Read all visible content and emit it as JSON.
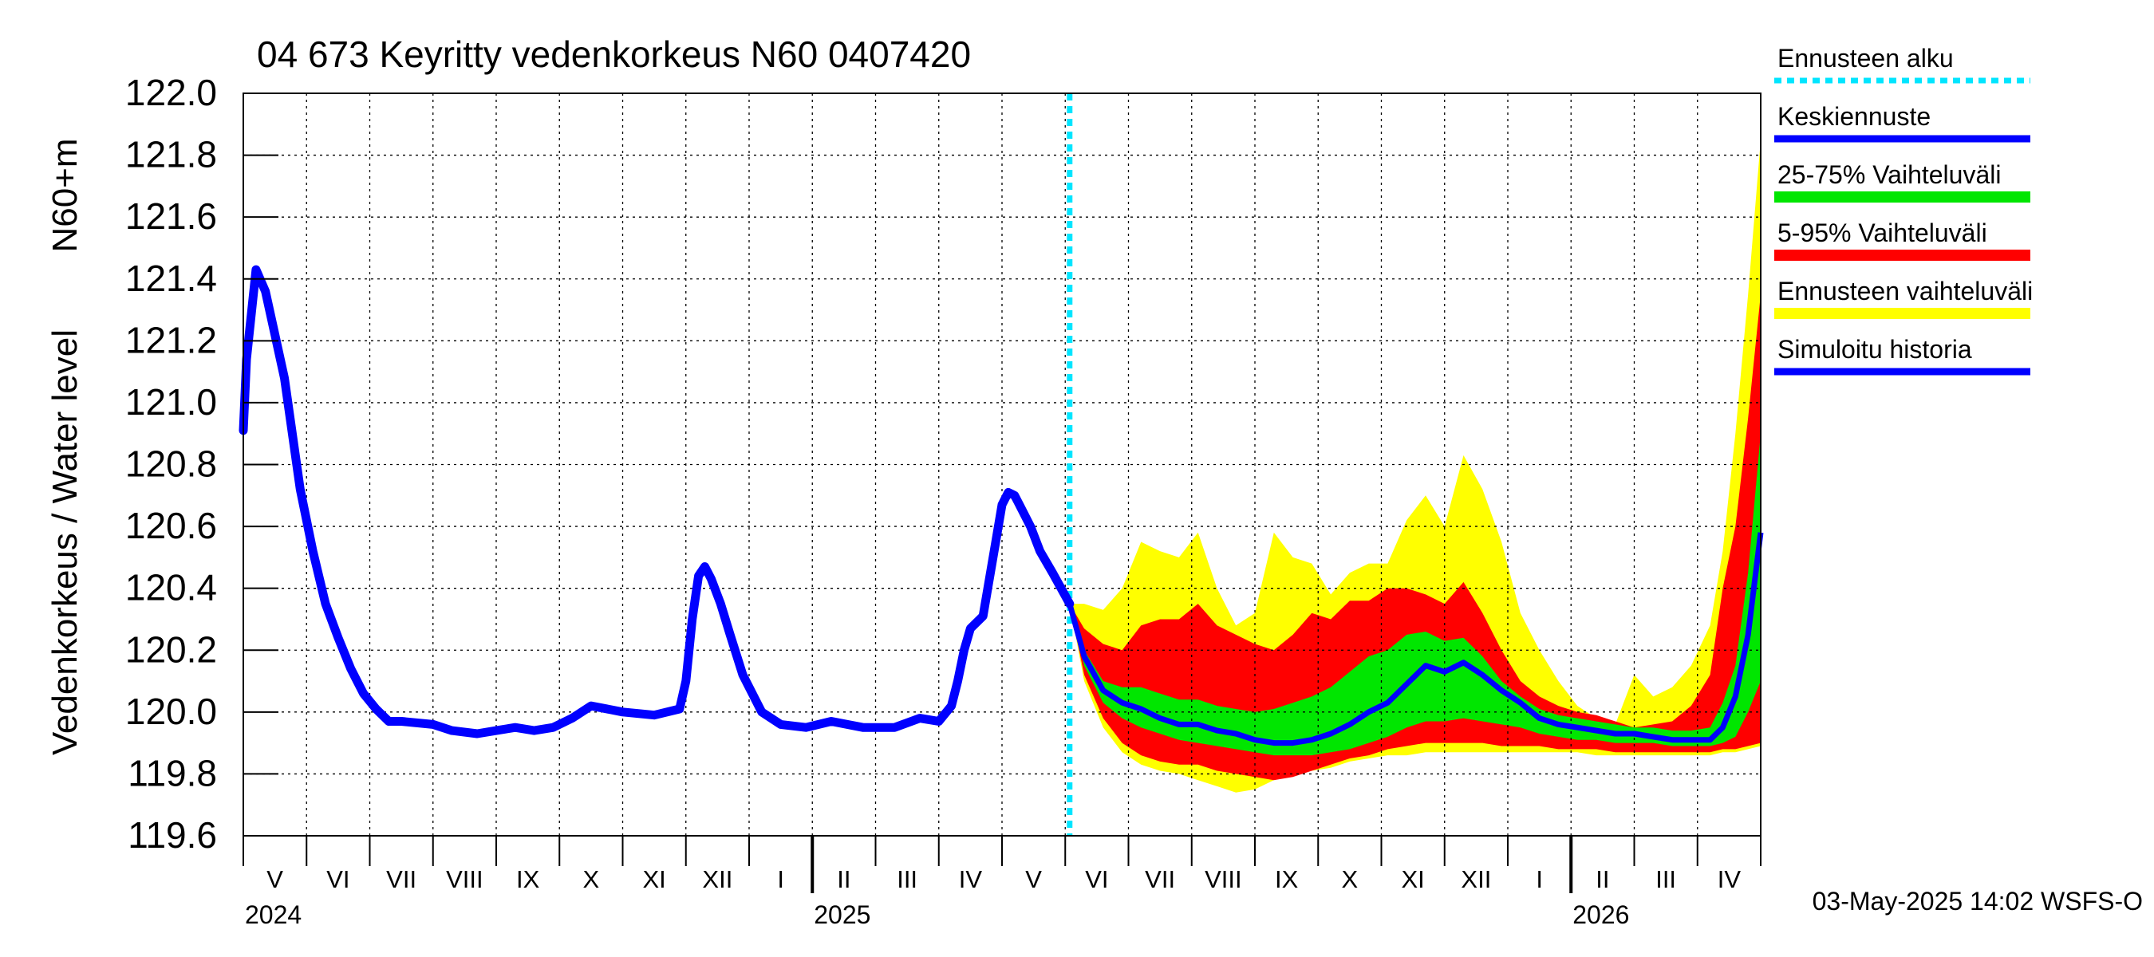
{
  "colors": {
    "background": "#ffffff",
    "grid": "#000000",
    "forecast_start": "#00e5ff",
    "mean_forecast": "#0000ff",
    "band_25_75": "#00e600",
    "band_5_95": "#ff0000",
    "band_forecast_range": "#ffff00",
    "simulated_history": "#0000ff"
  },
  "chart_data": {
    "type": "line",
    "title": "04 673 Keyritty vedenkorkeus N60 0407420",
    "ylabel_left": "Vedenkorkeus / Water level",
    "ylabel_right": "N60+m",
    "ylim": [
      119.6,
      122.0
    ],
    "yticks": [
      "122.0",
      "121.8",
      "121.6",
      "121.4",
      "121.2",
      "121.0",
      "120.8",
      "120.6",
      "120.4",
      "120.2",
      "120.0",
      "119.8",
      "119.6"
    ],
    "x_range_months": [
      0,
      24
    ],
    "x_unit": "months since 2024-04-01",
    "month_labels": [
      "V",
      "VI",
      "VII",
      "VIII",
      "IX",
      "X",
      "XI",
      "XII",
      "I",
      "II",
      "III",
      "IV",
      "V",
      "VI",
      "VII",
      "VIII",
      "IX",
      "X",
      "XI",
      "XII",
      "I",
      "II",
      "III",
      "IV"
    ],
    "year_labels": [
      {
        "label": "2024",
        "month_index": 0
      },
      {
        "label": "2025",
        "month_index": 9
      },
      {
        "label": "2026",
        "month_index": 21
      }
    ],
    "forecast_start": 13.07,
    "legend": [
      {
        "label": "Ennusteen alku",
        "key": "forecast_start"
      },
      {
        "label": "Keskiennuste",
        "key": "mean_forecast"
      },
      {
        "label": "25-75% Vaihteluväli",
        "key": "band_25_75"
      },
      {
        "label": "5-95% Vaihteluväli",
        "key": "band_5_95"
      },
      {
        "label": "Ennusteen vaihteluväli",
        "key": "band_forecast_range"
      },
      {
        "label": "Simuloitu historia",
        "key": "simulated_history"
      }
    ],
    "footer": "03-May-2025 14:02 WSFS-O",
    "history": {
      "name": "Simuloitu historia",
      "x": [
        0.0,
        0.05,
        0.2,
        0.35,
        0.5,
        0.65,
        0.9,
        1.1,
        1.3,
        1.5,
        1.7,
        1.9,
        2.1,
        2.3,
        2.5,
        3.0,
        3.3,
        3.7,
        4.0,
        4.3,
        4.6,
        4.9,
        5.2,
        5.5,
        6.0,
        6.5,
        6.9,
        7.0,
        7.1,
        7.2,
        7.3,
        7.4,
        7.55,
        7.7,
        7.9,
        8.2,
        8.5,
        8.9,
        9.3,
        9.8,
        10.3,
        10.7,
        11.0,
        11.2,
        11.3,
        11.4,
        11.5,
        11.7,
        11.9,
        12.0,
        12.1,
        12.2,
        12.3,
        12.45,
        12.6,
        12.8,
        13.07
      ],
      "y": [
        120.91,
        121.14,
        121.43,
        121.36,
        121.22,
        121.08,
        120.72,
        120.52,
        120.35,
        120.24,
        120.14,
        120.06,
        120.01,
        119.97,
        119.97,
        119.96,
        119.94,
        119.93,
        119.94,
        119.95,
        119.94,
        119.95,
        119.98,
        120.02,
        120.0,
        119.99,
        120.01,
        120.1,
        120.3,
        120.44,
        120.47,
        120.43,
        120.35,
        120.25,
        120.12,
        120.0,
        119.96,
        119.95,
        119.97,
        119.95,
        119.95,
        119.98,
        119.97,
        120.02,
        120.1,
        120.2,
        120.27,
        120.31,
        120.55,
        120.67,
        120.71,
        120.7,
        120.66,
        120.6,
        120.52,
        120.45,
        120.35
      ]
    },
    "forecast_x": [
      13.07,
      13.3,
      13.6,
      13.9,
      14.2,
      14.5,
      14.8,
      15.1,
      15.4,
      15.7,
      16.0,
      16.3,
      16.6,
      16.9,
      17.2,
      17.5,
      17.8,
      18.1,
      18.4,
      18.7,
      19.0,
      19.3,
      19.6,
      19.9,
      20.2,
      20.5,
      20.8,
      21.1,
      21.4,
      21.7,
      22.0,
      22.3,
      22.6,
      22.9,
      23.2,
      23.4,
      23.6,
      23.8,
      24.0
    ],
    "series": [
      {
        "name": "Keskiennuste",
        "values": [
          120.35,
          120.18,
          120.07,
          120.03,
          120.01,
          119.98,
          119.96,
          119.96,
          119.94,
          119.93,
          119.91,
          119.9,
          119.9,
          119.91,
          119.93,
          119.96,
          120.0,
          120.03,
          120.09,
          120.15,
          120.13,
          120.16,
          120.12,
          120.07,
          120.03,
          119.98,
          119.96,
          119.95,
          119.94,
          119.93,
          119.93,
          119.92,
          119.91,
          119.91,
          119.91,
          119.95,
          120.05,
          120.25,
          120.58
        ]
      },
      {
        "name": "25-75% Vaihteluväli",
        "upper": [
          120.35,
          120.2,
          120.1,
          120.08,
          120.08,
          120.06,
          120.04,
          120.04,
          120.02,
          120.01,
          120.0,
          120.01,
          120.03,
          120.05,
          120.08,
          120.13,
          120.18,
          120.2,
          120.25,
          120.26,
          120.23,
          120.24,
          120.18,
          120.1,
          120.05,
          120.01,
          119.99,
          119.98,
          119.97,
          119.96,
          119.95,
          119.95,
          119.94,
          119.94,
          119.95,
          120.03,
          120.15,
          120.45,
          120.9
        ],
        "lower": [
          120.35,
          120.15,
          120.03,
          119.98,
          119.95,
          119.93,
          119.91,
          119.9,
          119.89,
          119.88,
          119.87,
          119.86,
          119.86,
          119.86,
          119.87,
          119.88,
          119.9,
          119.92,
          119.95,
          119.97,
          119.97,
          119.98,
          119.97,
          119.96,
          119.95,
          119.93,
          119.92,
          119.91,
          119.91,
          119.9,
          119.9,
          119.9,
          119.89,
          119.89,
          119.89,
          119.9,
          119.92,
          120.0,
          120.1
        ]
      },
      {
        "name": "5-95% Vaihteluväli",
        "upper": [
          120.35,
          120.27,
          120.22,
          120.2,
          120.28,
          120.3,
          120.3,
          120.35,
          120.28,
          120.25,
          120.22,
          120.2,
          120.25,
          120.32,
          120.3,
          120.36,
          120.36,
          120.4,
          120.4,
          120.38,
          120.35,
          120.42,
          120.32,
          120.2,
          120.1,
          120.05,
          120.02,
          120.0,
          119.99,
          119.97,
          119.95,
          119.96,
          119.97,
          120.02,
          120.12,
          120.4,
          120.6,
          120.95,
          121.35
        ],
        "lower": [
          120.35,
          120.12,
          119.98,
          119.9,
          119.86,
          119.84,
          119.83,
          119.83,
          119.81,
          119.8,
          119.79,
          119.78,
          119.79,
          119.81,
          119.83,
          119.85,
          119.86,
          119.88,
          119.89,
          119.9,
          119.9,
          119.9,
          119.9,
          119.89,
          119.89,
          119.89,
          119.88,
          119.88,
          119.88,
          119.87,
          119.87,
          119.87,
          119.87,
          119.87,
          119.87,
          119.88,
          119.88,
          119.89,
          119.9
        ]
      },
      {
        "name": "Ennusteen vaihteluväli",
        "upper": [
          120.35,
          120.35,
          120.33,
          120.4,
          120.55,
          120.52,
          120.5,
          120.58,
          120.4,
          120.28,
          120.32,
          120.58,
          120.5,
          120.48,
          120.38,
          120.45,
          120.48,
          120.48,
          120.62,
          120.7,
          120.6,
          120.83,
          120.72,
          120.55,
          120.32,
          120.2,
          120.1,
          120.02,
          119.98,
          119.96,
          120.12,
          120.05,
          120.08,
          120.15,
          120.28,
          120.52,
          120.9,
          121.35,
          121.85
        ],
        "lower": [
          120.35,
          120.1,
          119.95,
          119.87,
          119.83,
          119.81,
          119.8,
          119.78,
          119.76,
          119.74,
          119.75,
          119.78,
          119.8,
          119.81,
          119.82,
          119.84,
          119.85,
          119.86,
          119.86,
          119.87,
          119.87,
          119.87,
          119.87,
          119.87,
          119.87,
          119.87,
          119.87,
          119.87,
          119.86,
          119.86,
          119.86,
          119.86,
          119.86,
          119.86,
          119.86,
          119.87,
          119.87,
          119.88,
          119.89
        ]
      }
    ]
  }
}
